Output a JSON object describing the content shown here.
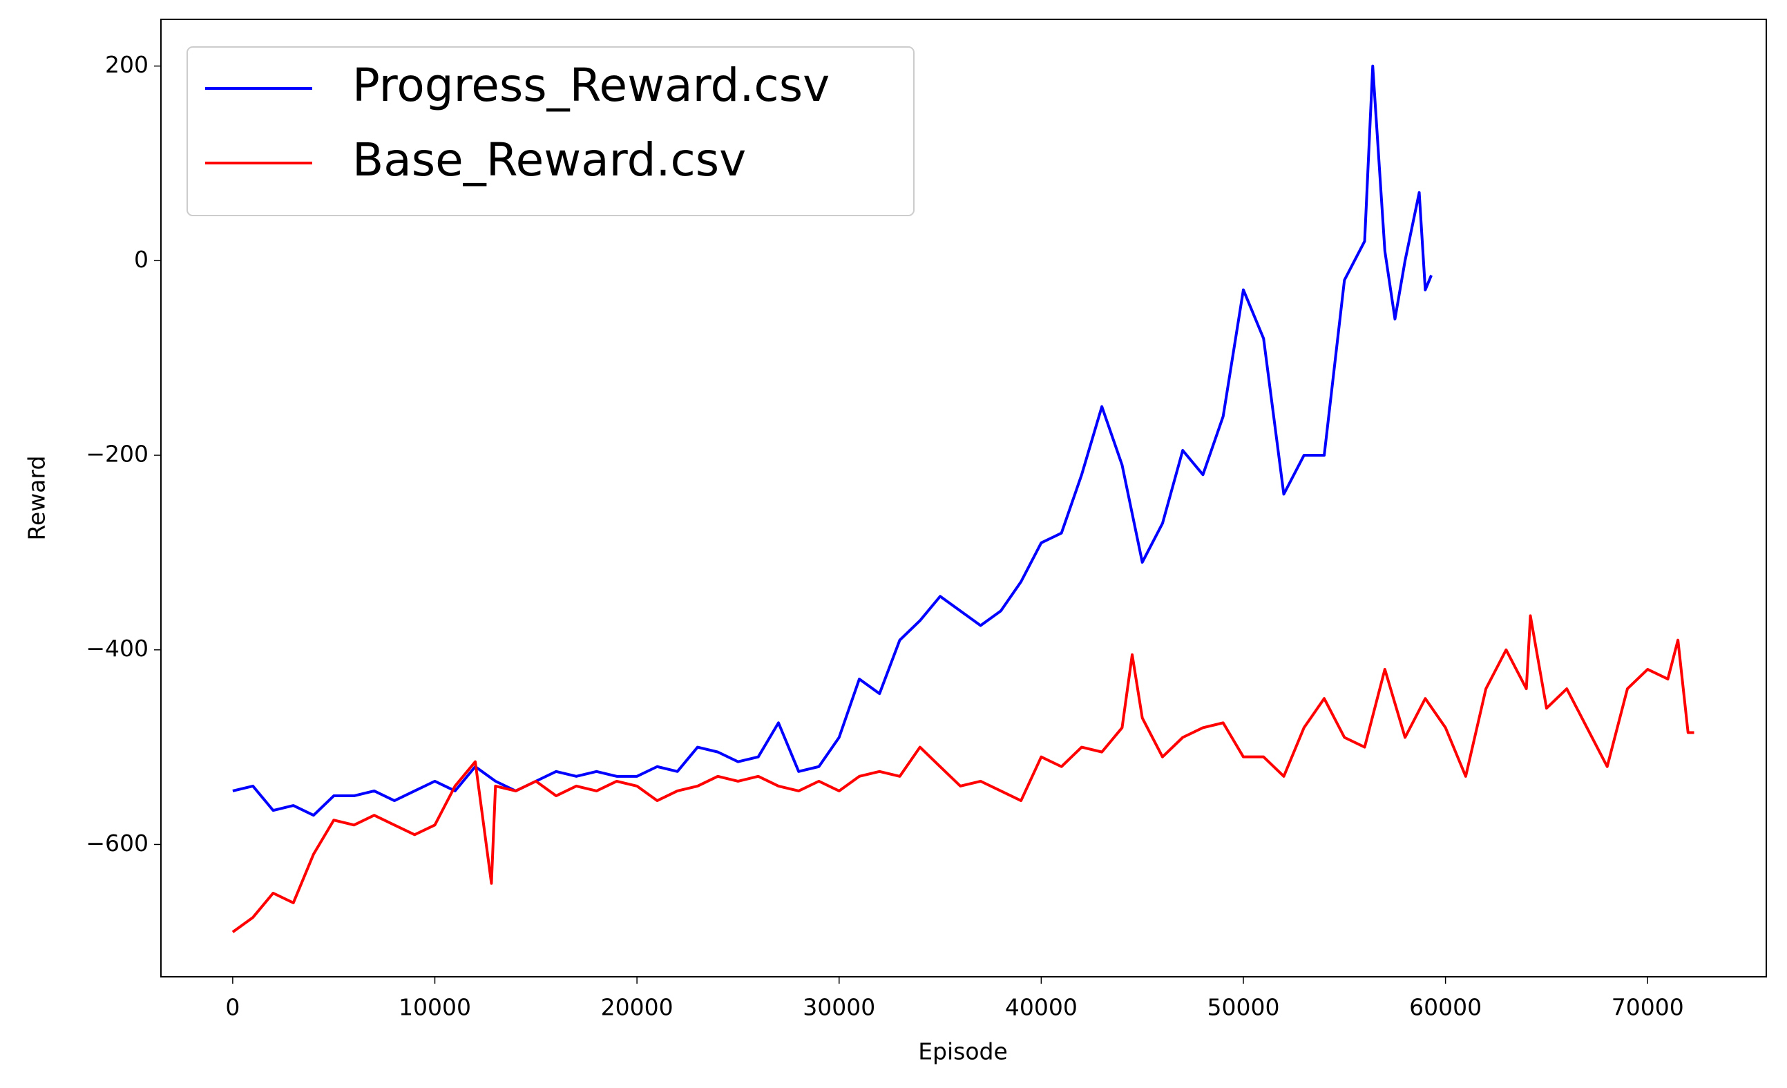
{
  "chart_data": {
    "type": "line",
    "xlabel": "Episode",
    "ylabel": "Reward",
    "xlim": [
      -3550,
      75870
    ],
    "ylim": [
      -736,
      248
    ],
    "xticks": [
      0,
      10000,
      20000,
      30000,
      40000,
      50000,
      60000,
      70000
    ],
    "yticks": [
      {
        "value": -600,
        "label": "−600"
      },
      {
        "value": -400,
        "label": "−400"
      },
      {
        "value": -200,
        "label": "−200"
      },
      0,
      200
    ],
    "legend": "upper left",
    "series": [
      {
        "name": "Progress_Reward.csv",
        "color": "#0000ff",
        "x": [
          0,
          1000,
          2000,
          3000,
          4000,
          5000,
          6000,
          7000,
          8000,
          9000,
          10000,
          11000,
          12000,
          13000,
          14000,
          15000,
          16000,
          17000,
          18000,
          19000,
          20000,
          21000,
          22000,
          23000,
          24000,
          25000,
          26000,
          27000,
          28000,
          29000,
          30000,
          31000,
          32000,
          33000,
          34000,
          35000,
          36000,
          37000,
          38000,
          39000,
          40000,
          41000,
          42000,
          43000,
          44000,
          45000,
          46000,
          47000,
          48000,
          49000,
          50000,
          51000,
          52000,
          53000,
          54000,
          55000,
          56000,
          56400,
          57000,
          57500,
          58000,
          58700,
          59000,
          59300
        ],
        "values": [
          -545,
          -540,
          -565,
          -560,
          -570,
          -550,
          -550,
          -545,
          -555,
          -545,
          -535,
          -545,
          -520,
          -535,
          -545,
          -535,
          -525,
          -530,
          -525,
          -530,
          -530,
          -520,
          -525,
          -500,
          -505,
          -515,
          -510,
          -475,
          -525,
          -520,
          -490,
          -430,
          -445,
          -390,
          -370,
          -345,
          -360,
          -375,
          -360,
          -330,
          -290,
          -280,
          -220,
          -150,
          -210,
          -310,
          -270,
          -195,
          -220,
          -160,
          -30,
          -80,
          -240,
          -200,
          -200,
          -20,
          20,
          200,
          10,
          -60,
          0,
          70,
          -30,
          -15
        ]
      },
      {
        "name": "Base_Reward.csv",
        "color": "#ff0000",
        "x": [
          0,
          1000,
          2000,
          3000,
          4000,
          5000,
          6000,
          7000,
          8000,
          9000,
          10000,
          11000,
          12000,
          12800,
          13000,
          14000,
          15000,
          16000,
          17000,
          18000,
          19000,
          20000,
          21000,
          22000,
          23000,
          24000,
          25000,
          26000,
          27000,
          28000,
          29000,
          30000,
          31000,
          32000,
          33000,
          34000,
          35000,
          36000,
          37000,
          38000,
          39000,
          40000,
          41000,
          42000,
          43000,
          44000,
          44500,
          45000,
          46000,
          47000,
          48000,
          49000,
          50000,
          51000,
          52000,
          53000,
          54000,
          55000,
          56000,
          57000,
          58000,
          59000,
          60000,
          61000,
          62000,
          63000,
          64000,
          64200,
          65000,
          66000,
          67000,
          68000,
          69000,
          70000,
          71000,
          71500,
          72000,
          72300
        ],
        "values": [
          -690,
          -675,
          -650,
          -660,
          -610,
          -575,
          -580,
          -570,
          -580,
          -590,
          -580,
          -540,
          -515,
          -640,
          -540,
          -545,
          -535,
          -550,
          -540,
          -545,
          -535,
          -540,
          -555,
          -545,
          -540,
          -530,
          -535,
          -530,
          -540,
          -545,
          -535,
          -545,
          -530,
          -525,
          -530,
          -500,
          -520,
          -540,
          -535,
          -545,
          -555,
          -510,
          -520,
          -500,
          -505,
          -480,
          -405,
          -470,
          -510,
          -490,
          -480,
          -475,
          -510,
          -510,
          -530,
          -480,
          -450,
          -490,
          -500,
          -420,
          -490,
          -450,
          -480,
          -530,
          -440,
          -400,
          -440,
          -365,
          -460,
          -440,
          -480,
          -520,
          -440,
          -420,
          -430,
          -390,
          -485,
          -485
        ]
      }
    ]
  }
}
